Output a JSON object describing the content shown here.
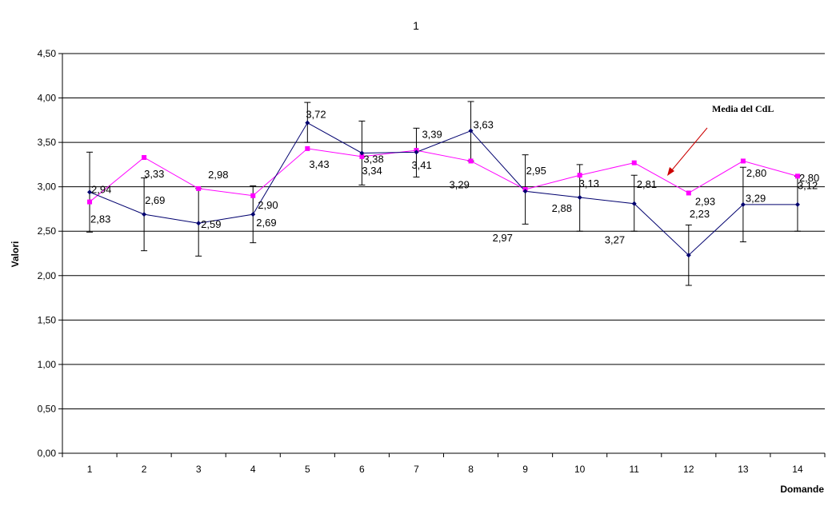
{
  "chart_data": {
    "type": "line",
    "title": "1",
    "xlabel": "Domande",
    "ylabel": "Valori",
    "ylim": [
      0,
      4.5
    ],
    "y_ticks": [
      "0,00",
      "0,50",
      "1,00",
      "1,50",
      "2,00",
      "2,50",
      "3,00",
      "3,50",
      "4,00",
      "4,50"
    ],
    "categories": [
      "1",
      "2",
      "3",
      "4",
      "5",
      "6",
      "7",
      "8",
      "9",
      "10",
      "11",
      "12",
      "13",
      "14"
    ],
    "grid": "horizontal",
    "series": [
      {
        "color": "#00006e",
        "marker": "diamond",
        "values": [
          2.94,
          2.69,
          2.59,
          2.69,
          3.72,
          3.38,
          3.39,
          3.63,
          2.95,
          2.88,
          2.81,
          2.23,
          2.8,
          2.8
        ],
        "labels": [
          "2,94",
          "2,69",
          "2,59",
          "2,69",
          "3,72",
          "3,38",
          "3,39",
          "3,63",
          "2,95",
          "2,88",
          "2,81",
          "2,23",
          "2,80",
          "2,80"
        ],
        "error_low": [
          2.49,
          2.28,
          2.22,
          2.37,
          3.5,
          3.02,
          3.11,
          3.29,
          2.58,
          2.5,
          2.5,
          1.89,
          2.38,
          2.5
        ],
        "error_high": [
          3.39,
          3.1,
          2.98,
          3.01,
          3.95,
          3.74,
          3.66,
          3.96,
          3.36,
          3.25,
          3.13,
          2.57,
          3.22,
          3.12
        ]
      },
      {
        "name": "Media del CdL",
        "color": "#ff00ff",
        "marker": "square",
        "values": [
          2.83,
          3.33,
          2.98,
          2.9,
          3.43,
          3.34,
          3.41,
          3.29,
          2.97,
          3.13,
          3.27,
          2.93,
          3.29,
          3.12
        ],
        "labels": [
          "2,83",
          "3,33",
          "2,98",
          "2,90",
          "3,43",
          "3,34",
          "3,41",
          "3,29",
          "2,97",
          "3,13",
          "3,27",
          "2,93",
          "3,29",
          "3,12"
        ]
      }
    ],
    "annotation": {
      "text": "Media del CdL",
      "arrow_color": "#cc0000"
    }
  }
}
